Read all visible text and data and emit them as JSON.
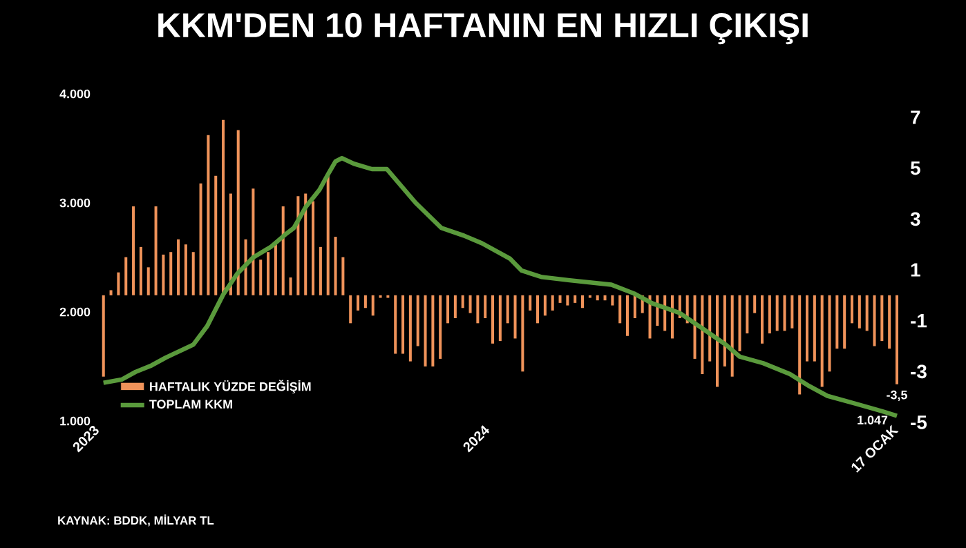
{
  "chart_data": {
    "type": "bar",
    "title": "KKM'DEN 10 HAFTANIN EN HIZLI ÇIKIŞI",
    "annotations": [
      "KAYNAK: BDDK, MİLYAR TL"
    ],
    "x": [
      "2023-01-06",
      "2023-01-13",
      "2023-01-20",
      "2023-01-27",
      "2023-02-03",
      "2023-02-10",
      "2023-02-17",
      "2023-02-24",
      "2023-03-03",
      "2023-03-10",
      "2023-03-17",
      "2023-03-24",
      "2023-03-31",
      "2023-04-07",
      "2023-04-14",
      "2023-04-21",
      "2023-04-28",
      "2023-05-05",
      "2023-05-12",
      "2023-05-19",
      "2023-05-26",
      "2023-06-02",
      "2023-06-09",
      "2023-06-16",
      "2023-06-23",
      "2023-06-30",
      "2023-07-07",
      "2023-07-14",
      "2023-07-21",
      "2023-07-28",
      "2023-08-04",
      "2023-08-11",
      "2023-08-18",
      "2023-08-25",
      "2023-09-01",
      "2023-09-08",
      "2023-09-15",
      "2023-09-22",
      "2023-09-29",
      "2023-10-06",
      "2023-10-13",
      "2023-10-20",
      "2023-10-27",
      "2023-11-03",
      "2023-11-10",
      "2023-11-17",
      "2023-11-24",
      "2023-12-01",
      "2023-12-08",
      "2023-12-15",
      "2023-12-22",
      "2023-12-29",
      "2024-01-05",
      "2024-01-12",
      "2024-01-19",
      "2024-01-26",
      "2024-02-02",
      "2024-02-09",
      "2024-02-16",
      "2024-02-23",
      "2024-03-01",
      "2024-03-08",
      "2024-03-15",
      "2024-03-22",
      "2024-03-29",
      "2024-04-05",
      "2024-04-12",
      "2024-04-19",
      "2024-04-26",
      "2024-05-03",
      "2024-05-10",
      "2024-05-17",
      "2024-05-24",
      "2024-05-31",
      "2024-06-07",
      "2024-06-14",
      "2024-06-21",
      "2024-06-28",
      "2024-07-05",
      "2024-07-12",
      "2024-07-19",
      "2024-07-26",
      "2024-08-02",
      "2024-08-09",
      "2024-08-16",
      "2024-08-23",
      "2024-08-30",
      "2024-09-06",
      "2024-09-13",
      "2024-09-20",
      "2024-09-27",
      "2024-10-04",
      "2024-10-11",
      "2024-10-18",
      "2024-10-25",
      "2024-11-01",
      "2024-11-08",
      "2024-11-15",
      "2024-11-22",
      "2024-11-29",
      "2024-12-06",
      "2024-12-13",
      "2024-12-20",
      "2024-12-27",
      "2025-01-03",
      "2025-01-10",
      "2025-01-17"
    ],
    "xlim": [
      "2023-01-01",
      "2025-01-17"
    ],
    "xticks": [
      {
        "value": "2023-01-01",
        "label": "2023"
      },
      {
        "value": "2024-01-01",
        "label": "2024"
      },
      {
        "value": "2025-01-17",
        "label": "17 OCAK"
      }
    ],
    "ylim": [
      1000,
      4000
    ],
    "yticks": [
      {
        "value": 1000,
        "label": "1.000"
      },
      {
        "value": 2000,
        "label": "2.000"
      },
      {
        "value": 3000,
        "label": "3.000"
      },
      {
        "value": 4000,
        "label": "4.000"
      }
    ],
    "y2lim": [
      -5,
      7
    ],
    "y2ticks": [
      -5,
      -3,
      -1,
      1,
      3,
      5,
      7
    ],
    "legend": "bottom left",
    "series": [
      {
        "name": "HAFTALIK YÜZDE DEĞİŞİM",
        "axis": "y2",
        "color": "#f0935a",
        "values": [
          -3.2,
          0.2,
          0.9,
          1.5,
          3.5,
          1.9,
          1.1,
          3.5,
          1.6,
          1.7,
          2.2,
          2.0,
          1.7,
          4.4,
          6.3,
          4.7,
          6.9,
          4.0,
          6.5,
          2.2,
          4.2,
          1.4,
          1.7,
          2.0,
          3.5,
          0.7,
          3.9,
          4.0,
          3.7,
          1.9,
          4.7,
          2.3,
          1.5,
          -1.1,
          -0.6,
          -0.5,
          -0.8,
          -0.1,
          -0.1,
          -2.3,
          -2.3,
          -2.6,
          -2.0,
          -2.8,
          -2.8,
          -2.5,
          -1.1,
          -0.9,
          -0.5,
          -0.7,
          -1.1,
          -0.9,
          -1.9,
          -1.8,
          -1.1,
          -1.7,
          -3.0,
          -0.6,
          -1.1,
          -0.8,
          -0.6,
          -0.3,
          -0.4,
          -0.3,
          -0.5,
          -0.1,
          -0.2,
          -0.2,
          -0.4,
          -1.1,
          -1.6,
          -0.9,
          -0.7,
          -1.7,
          -1.2,
          -1.4,
          -1.7,
          -0.9,
          -1.1,
          -2.5,
          -3.1,
          -2.6,
          -3.6,
          -2.8,
          -3.2,
          -2.2,
          -1.5,
          -0.7,
          -1.9,
          -1.5,
          -1.4,
          -1.4,
          -1.3,
          -3.9,
          -2.6,
          -2.6,
          -3.6,
          -3.0,
          -2.1,
          -2.1,
          -1.1,
          -1.3,
          -1.4,
          -2.0,
          -1.8,
          -2.1,
          -3.5
        ],
        "value_labels": [
          null,
          null,
          null,
          null,
          null,
          null,
          null,
          null,
          null,
          null,
          null,
          null,
          null,
          null,
          null,
          null,
          null,
          null,
          null,
          null,
          null,
          null,
          null,
          null,
          null,
          null,
          null,
          null,
          null,
          null,
          null,
          null,
          null,
          null,
          null,
          null,
          null,
          null,
          null,
          null,
          null,
          null,
          null,
          null,
          null,
          null,
          null,
          null,
          null,
          null,
          null,
          null,
          null,
          null,
          null,
          null,
          null,
          null,
          null,
          null,
          null,
          null,
          null,
          null,
          null,
          null,
          null,
          null,
          null,
          null,
          null,
          null,
          null,
          null,
          null,
          null,
          null,
          null,
          null,
          null,
          null,
          null,
          null,
          null,
          null,
          null,
          null,
          null,
          null,
          null,
          null,
          null,
          null,
          null,
          null,
          null,
          null,
          null,
          null,
          null,
          null,
          null,
          null,
          null,
          null,
          null,
          "-3,5"
        ]
      },
      {
        "name": "TOPLAM KKM",
        "type": "line",
        "axis": "y",
        "color": "#5a9a3c",
        "x": [
          "2023-01-06",
          "2023-01-23",
          "2023-02-05",
          "2023-02-20",
          "2023-03-05",
          "2023-03-31",
          "2023-04-13",
          "2023-04-28",
          "2023-05-11",
          "2023-05-26",
          "2023-06-12",
          "2023-06-25",
          "2023-07-03",
          "2023-07-14",
          "2023-07-27",
          "2023-08-05",
          "2023-08-11",
          "2023-08-17",
          "2023-08-28",
          "2023-09-14",
          "2023-09-28",
          "2023-10-25",
          "2023-11-18",
          "2023-12-09",
          "2023-12-26",
          "2024-01-21",
          "2024-02-01",
          "2024-02-20",
          "2024-03-17",
          "2024-04-25",
          "2024-05-16",
          "2024-06-02",
          "2024-06-28",
          "2024-07-16",
          "2024-08-10",
          "2024-08-23",
          "2024-09-14",
          "2024-10-09",
          "2024-10-27",
          "2024-11-13",
          "2024-12-09",
          "2025-01-03",
          "2025-01-17"
        ],
        "values": [
          1350,
          1380,
          1450,
          1510,
          1580,
          1700,
          1870,
          2160,
          2350,
          2500,
          2600,
          2710,
          2770,
          2960,
          3120,
          3280,
          3380,
          3410,
          3360,
          3310,
          3310,
          3000,
          2770,
          2700,
          2630,
          2490,
          2380,
          2320,
          2290,
          2250,
          2170,
          2080,
          1990,
          1870,
          1700,
          1590,
          1530,
          1430,
          1320,
          1230,
          1160,
          1090,
          1047
        ],
        "value_labels": [
          null,
          null,
          null,
          null,
          null,
          null,
          null,
          null,
          null,
          null,
          null,
          null,
          null,
          null,
          null,
          null,
          null,
          null,
          null,
          null,
          null,
          null,
          null,
          null,
          null,
          null,
          null,
          null,
          null,
          null,
          null,
          null,
          null,
          null,
          null,
          null,
          null,
          null,
          null,
          null,
          null,
          null,
          "1.047"
        ]
      }
    ]
  }
}
